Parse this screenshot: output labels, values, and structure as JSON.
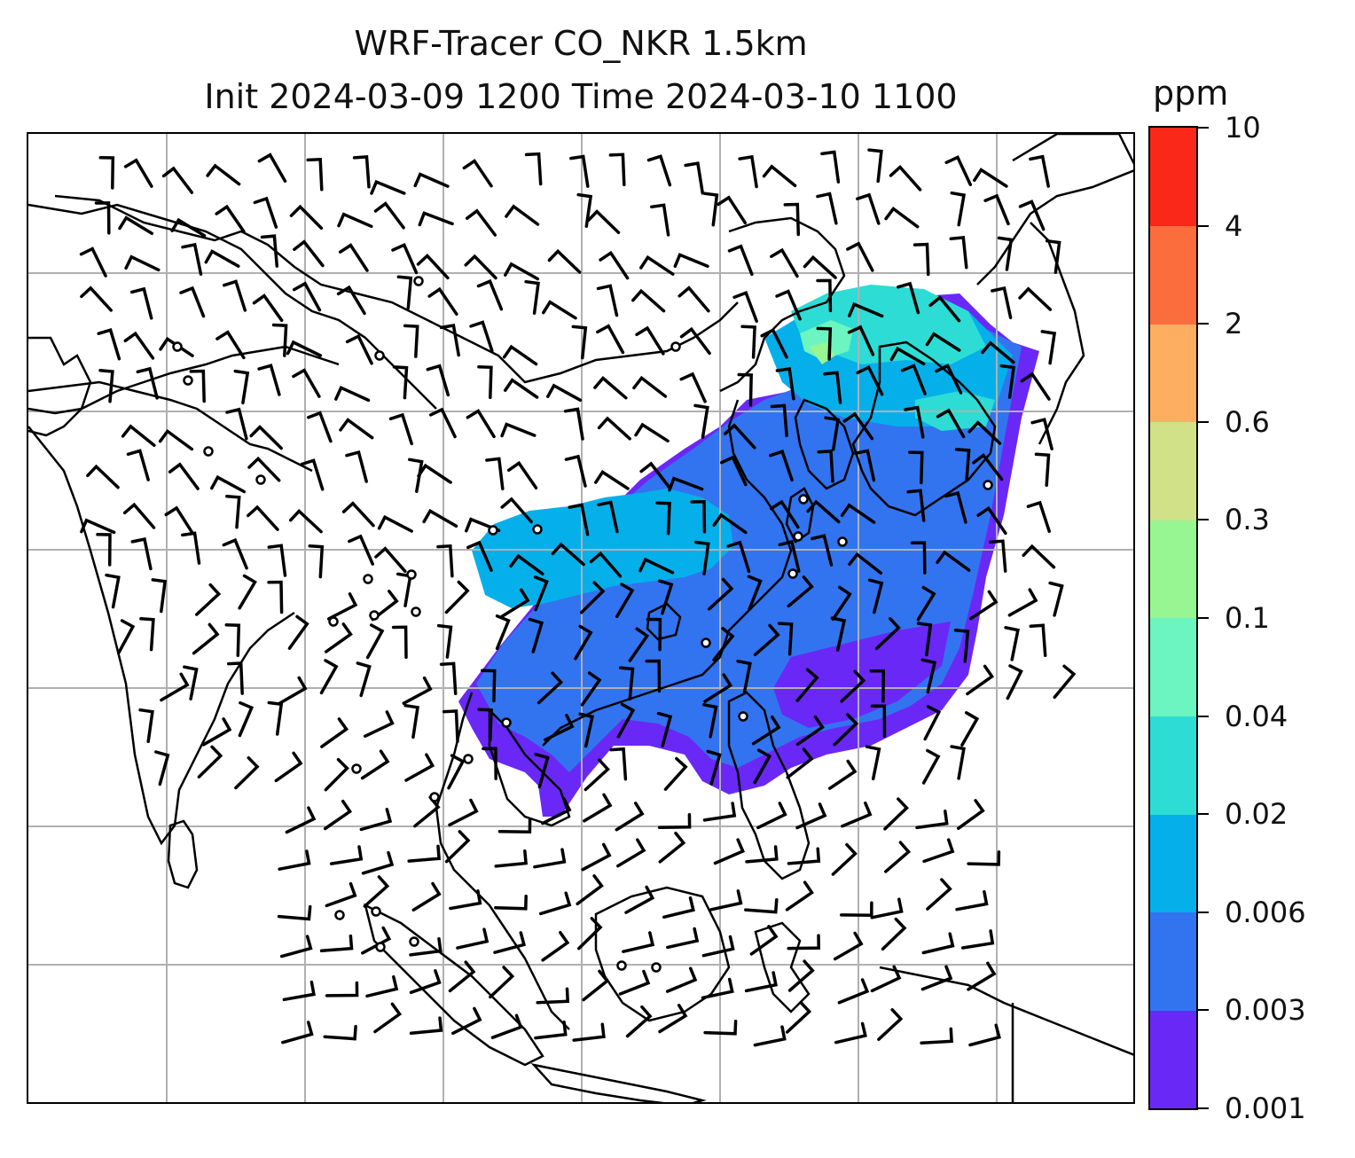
{
  "title": {
    "line1": "WRF-Tracer CO_NKR 1.5km",
    "line2": "Init 2024-03-09 1200 Time 2024-03-10 1100"
  },
  "colorbar": {
    "units": "ppm",
    "levels": [
      "0.001",
      "0.003",
      "0.006",
      "0.02",
      "0.02",
      "0.04",
      "0.1",
      "0.3",
      "0.6",
      "2",
      "4",
      "10"
    ],
    "tick_labels": [
      "0.001",
      "0.003",
      "0.006",
      "0.02",
      "0.04",
      "0.1",
      "0.3",
      "0.6",
      "2",
      "4",
      "10"
    ],
    "colors": [
      "#6a28f7",
      "#3274f0",
      "#05b0ea",
      "#2edcd6",
      "#6cf5c0",
      "#97f592",
      "#d0e187",
      "#fdae61",
      "#fc6d3d",
      "#f92819"
    ]
  },
  "map": {
    "gridlines": true,
    "gridline_color": "#b0b0b0",
    "coastline_color": "#000000",
    "tracer_field_shown": true,
    "wind_barbs_shown": true,
    "calm_station_markers_shown": true
  }
}
